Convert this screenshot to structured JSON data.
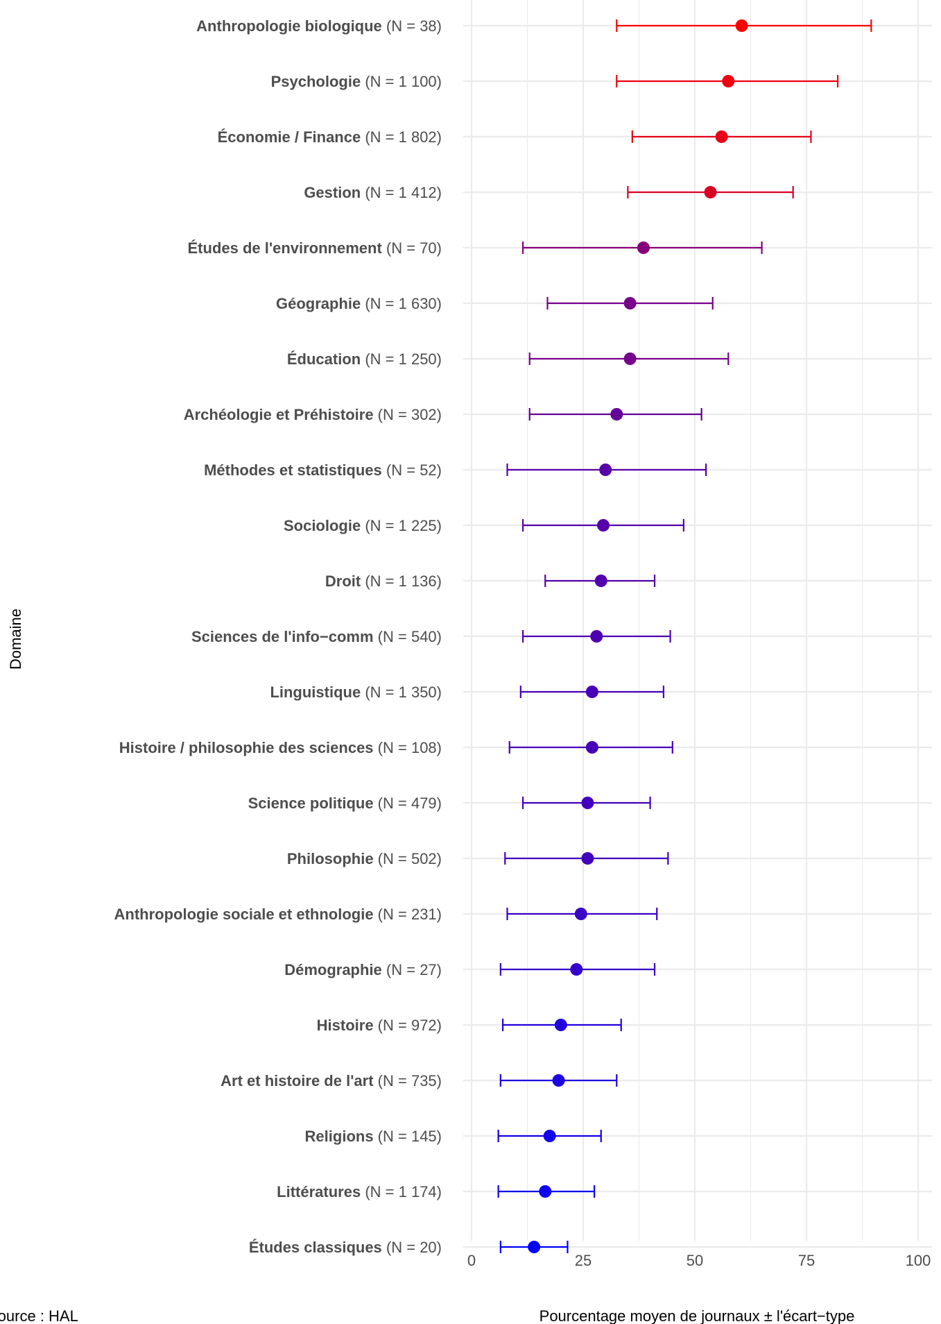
{
  "chart_data": {
    "type": "dot-errorbar",
    "title": "",
    "xlabel": "Pourcentage moyen de journaux ± l'écart−type",
    "ylabel": "Domaine",
    "xlim": [
      0,
      100
    ],
    "xticks": [
      0,
      25,
      50,
      75,
      100
    ],
    "caption": "Source : HAL",
    "color_scale": {
      "low": "#0000ff",
      "high": "#ff0000"
    },
    "grid": true,
    "legend": "none",
    "categories": [
      {
        "name": "Anthropologie biologique",
        "n": "(N = 38)",
        "mean": 60.5,
        "lo": 32.5,
        "hi": 89.5
      },
      {
        "name": "Psychologie",
        "n": "(N = 1 100)",
        "mean": 57.5,
        "lo": 32.5,
        "hi": 82.0
      },
      {
        "name": "Économie / Finance",
        "n": "(N = 1 802)",
        "mean": 56.0,
        "lo": 36.0,
        "hi": 76.0
      },
      {
        "name": "Gestion",
        "n": "(N = 1 412)",
        "mean": 53.5,
        "lo": 35.0,
        "hi": 72.0
      },
      {
        "name": "Études de l'environnement",
        "n": "(N = 70)",
        "mean": 38.5,
        "lo": 11.5,
        "hi": 65.0
      },
      {
        "name": "Géographie",
        "n": "(N = 1 630)",
        "mean": 35.5,
        "lo": 17.0,
        "hi": 54.0
      },
      {
        "name": "Éducation",
        "n": "(N = 1 250)",
        "mean": 35.5,
        "lo": 13.0,
        "hi": 57.5
      },
      {
        "name": "Archéologie et Préhistoire",
        "n": "(N = 302)",
        "mean": 32.5,
        "lo": 13.0,
        "hi": 51.5
      },
      {
        "name": "Méthodes et statistiques",
        "n": "(N = 52)",
        "mean": 30.0,
        "lo": 8.0,
        "hi": 52.5
      },
      {
        "name": "Sociologie",
        "n": "(N = 1 225)",
        "mean": 29.5,
        "lo": 11.5,
        "hi": 47.5
      },
      {
        "name": "Droit",
        "n": "(N = 1 136)",
        "mean": 29.0,
        "lo": 16.5,
        "hi": 41.0
      },
      {
        "name": "Sciences de l'info−comm",
        "n": "(N = 540)",
        "mean": 28.0,
        "lo": 11.5,
        "hi": 44.5
      },
      {
        "name": "Linguistique",
        "n": "(N = 1 350)",
        "mean": 27.0,
        "lo": 11.0,
        "hi": 43.0
      },
      {
        "name": "Histoire / philosophie des sciences",
        "n": "(N = 108)",
        "mean": 27.0,
        "lo": 8.5,
        "hi": 45.0
      },
      {
        "name": "Science politique",
        "n": "(N = 479)",
        "mean": 26.0,
        "lo": 11.5,
        "hi": 40.0
      },
      {
        "name": "Philosophie",
        "n": "(N = 502)",
        "mean": 26.0,
        "lo": 7.5,
        "hi": 44.0
      },
      {
        "name": "Anthropologie sociale et ethnologie",
        "n": "(N = 231)",
        "mean": 24.5,
        "lo": 8.0,
        "hi": 41.5
      },
      {
        "name": "Démographie",
        "n": "(N = 27)",
        "mean": 23.5,
        "lo": 6.5,
        "hi": 41.0
      },
      {
        "name": "Histoire",
        "n": "(N = 972)",
        "mean": 20.0,
        "lo": 7.0,
        "hi": 33.5
      },
      {
        "name": "Art et histoire de l'art",
        "n": "(N = 735)",
        "mean": 19.5,
        "lo": 6.5,
        "hi": 32.5
      },
      {
        "name": "Religions",
        "n": "(N = 145)",
        "mean": 17.5,
        "lo": 6.0,
        "hi": 29.0
      },
      {
        "name": "Littératures",
        "n": "(N = 1 174)",
        "mean": 16.5,
        "lo": 6.0,
        "hi": 27.5
      },
      {
        "name": "Études classiques",
        "n": "(N = 20)",
        "mean": 14.0,
        "lo": 6.5,
        "hi": 21.5
      }
    ]
  }
}
